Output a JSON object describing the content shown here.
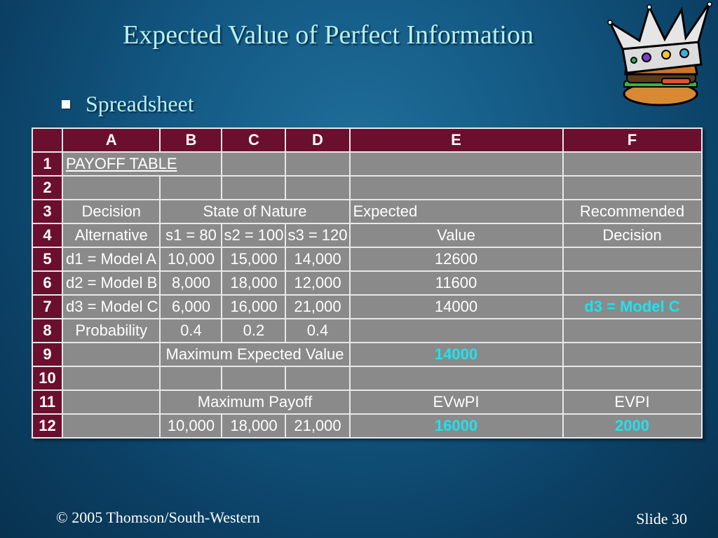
{
  "slide": {
    "title": "Expected Value of Perfect Information",
    "bullet": "Spreadsheet",
    "footer_copyright": "© 2005  Thomson/South-Western",
    "footer_slide": "Slide 30"
  },
  "sheet": {
    "cols": [
      "A",
      "B",
      "C",
      "D",
      "E",
      "F"
    ],
    "rows": [
      "1",
      "2",
      "3",
      "4",
      "5",
      "6",
      "7",
      "8",
      "9",
      "10",
      "11",
      "12"
    ],
    "r1": {
      "a": "PAYOFF TABLE"
    },
    "r3": {
      "a": "Decision",
      "bcd": "State of Nature",
      "e": "Expected",
      "f": "Recommended"
    },
    "r4": {
      "a": "Alternative",
      "b": "s1 = 80",
      "c": "s2 = 100",
      "d": "s3 = 120",
      "e": "Value",
      "f": "Decision"
    },
    "r5": {
      "a": "d1 = Model A",
      "b": "10,000",
      "c": "15,000",
      "d": "14,000",
      "e": "12600",
      "f": ""
    },
    "r6": {
      "a": "d2 = Model B",
      "b": "8,000",
      "c": "18,000",
      "d": "12,000",
      "e": "11600",
      "f": ""
    },
    "r7": {
      "a": "d3 = Model C",
      "b": "6,000",
      "c": "16,000",
      "d": "21,000",
      "e": "14000",
      "f": "d3 = Model C"
    },
    "r8": {
      "a": "Probability",
      "b": "0.4",
      "c": "0.2",
      "d": "0.4"
    },
    "r9": {
      "bcd": "Maximum Expected Value",
      "e": "14000"
    },
    "r11": {
      "bcd": "Maximum Payoff",
      "e": "EVwPI",
      "f": "EVPI"
    },
    "r12": {
      "b": "10,000",
      "c": "18,000",
      "d": "21,000",
      "e": "16000",
      "f": "2000"
    }
  },
  "colors": {
    "title": "#b8f0f5",
    "header_bg": "#6b0f2e",
    "cell_bg": "#8a8a8a",
    "highlight": "#1fe2ee"
  },
  "icons": {
    "clipart": "crowned-hamburger-icon"
  }
}
